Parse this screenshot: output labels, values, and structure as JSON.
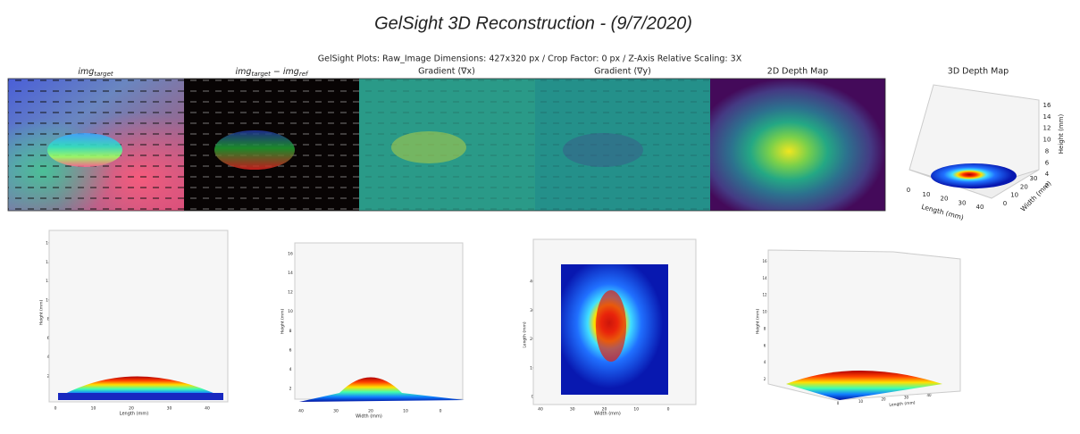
{
  "header": {
    "title": "GelSight 3D Reconstruction - (9/7/2020)",
    "subtitle": "GelSight Plots: Raw_Image Dimensions: 427x320 px / Crop Factor: 0 px / Z-Axis Relative Scaling: 3X"
  },
  "panels": [
    {
      "title": {
        "base": "img",
        "sub": "target"
      }
    },
    {
      "title": {
        "base": "img",
        "sub": "target",
        "op": " − ",
        "base2": "img",
        "sub2": "ref"
      }
    },
    {
      "title": "Gradient (∇x)"
    },
    {
      "title": "Gradient (∇y)"
    },
    {
      "title": "2D Depth Map"
    },
    {
      "title": "3D Depth Map"
    }
  ],
  "depth_3d": {
    "zticks": [
      2,
      4,
      6,
      8,
      10,
      12,
      14,
      16
    ],
    "xticks": [
      0,
      10,
      20,
      30,
      40
    ],
    "yticks": [
      0,
      10,
      20,
      30
    ],
    "zlabel": "Height (mm)",
    "xlabel": "Length (mm)",
    "ylabel": "Width (mm)"
  },
  "views": [
    {
      "zticks": [
        2,
        4,
        6,
        8,
        10,
        12,
        14,
        16
      ],
      "xticks": [
        0,
        10,
        20,
        30,
        40
      ],
      "xlabel": "Length (mm)",
      "zlabel": "Height (mm)"
    },
    {
      "zticks": [
        2,
        4,
        6,
        8,
        10,
        12,
        14,
        16
      ],
      "xticks": [
        40,
        30,
        20,
        10,
        0
      ],
      "xlabel": "Width (mm)",
      "zlabel": "Height (mm)"
    },
    {
      "yticks": [
        0,
        10,
        20,
        30,
        40
      ],
      "xticks": [
        40,
        30,
        20,
        10,
        0
      ],
      "xlabel": "Width (mm)",
      "ylabel": "Length (mm)"
    },
    {
      "zticks": [
        2,
        4,
        6,
        8,
        10,
        12,
        14,
        16
      ],
      "xticks": [
        0,
        10,
        20,
        30,
        40
      ],
      "xlabel": "Length (mm)",
      "zlabel": "Height (mm)"
    }
  ]
}
